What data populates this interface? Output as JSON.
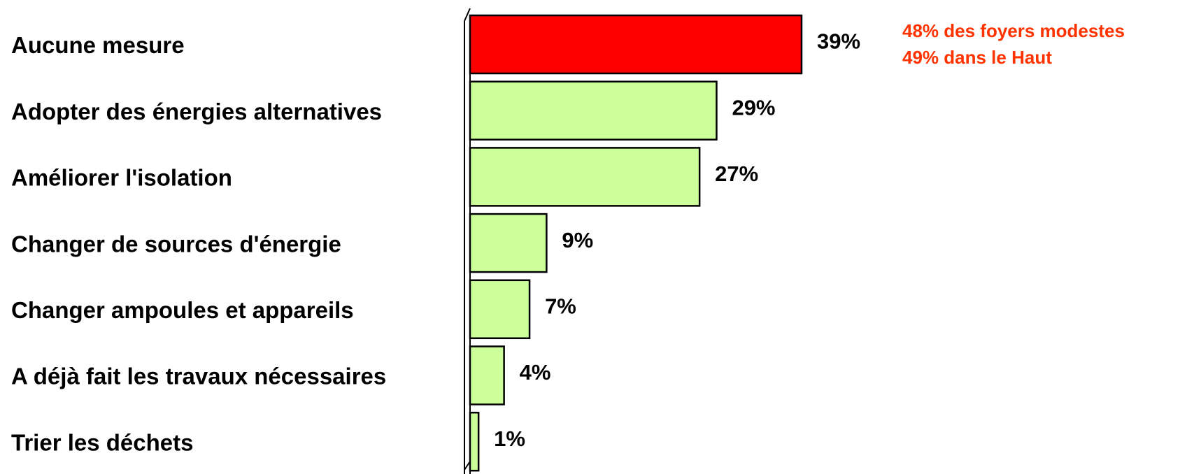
{
  "chart_data": {
    "type": "bar",
    "orientation": "horizontal",
    "categories": [
      "Aucune mesure",
      "Adopter des énergies alternatives",
      "Améliorer l'isolation",
      "Changer de sources d'énergie",
      "Changer ampoules et appareils",
      "A déjà fait les travaux nécessaires",
      "Trier les déchets"
    ],
    "values": [
      39,
      29,
      27,
      9,
      7,
      4,
      1
    ],
    "value_labels": [
      "39%",
      "29%",
      "27%",
      "9%",
      "7%",
      "4%",
      "1%"
    ],
    "colors": [
      "#ff0000",
      "#ccff99",
      "#ccff99",
      "#ccff99",
      "#ccff99",
      "#ccff99",
      "#ccff99"
    ],
    "annotations": [
      "48% des foyers modestes",
      "49% dans le Haut"
    ]
  }
}
